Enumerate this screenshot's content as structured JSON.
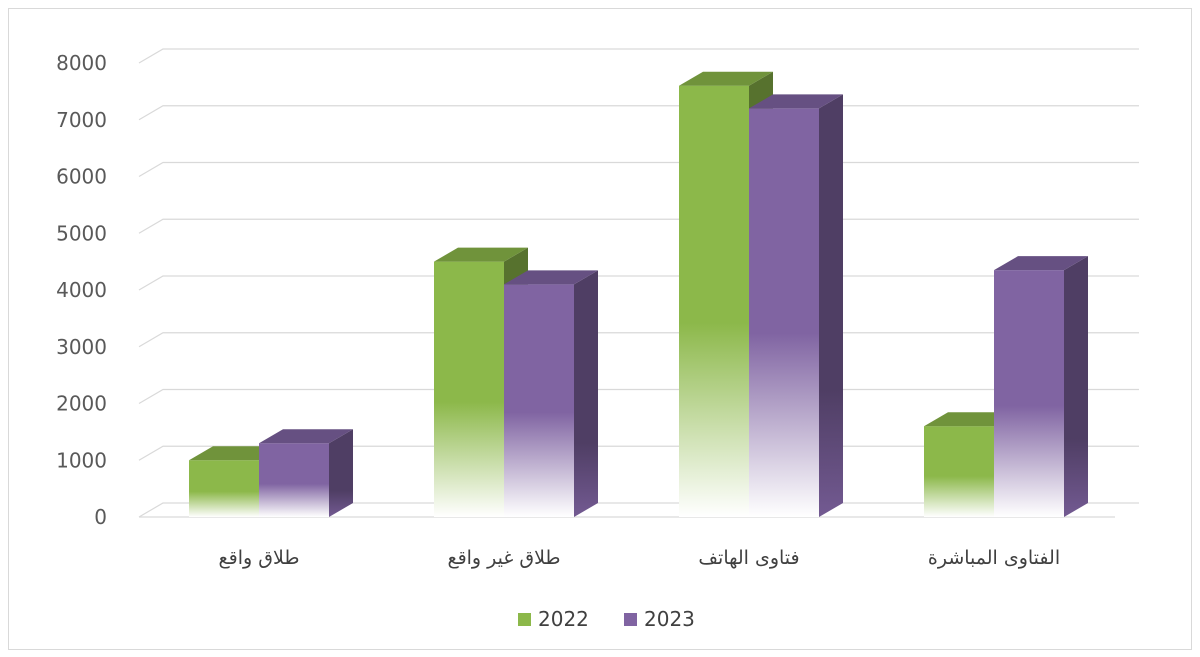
{
  "chart_data": {
    "type": "bar",
    "categories": [
      "طلاق واقع",
      "طلاق غير واقع",
      "فتاوى الهاتف",
      "الفتاوى المباشرة"
    ],
    "series": [
      {
        "name": "2022",
        "values": [
          1000,
          4500,
          7600,
          1600
        ],
        "color": "#8cb84a"
      },
      {
        "name": "2023",
        "values": [
          1300,
          4100,
          7200,
          4350
        ],
        "color": "#8064a2"
      }
    ],
    "yticks": [
      "0",
      "1000",
      "2000",
      "3000",
      "4000",
      "5000",
      "6000",
      "7000",
      "8000"
    ],
    "ylim": [
      0,
      8000
    ],
    "grid": true,
    "legend": "bottom",
    "style": "3d-gradient"
  }
}
